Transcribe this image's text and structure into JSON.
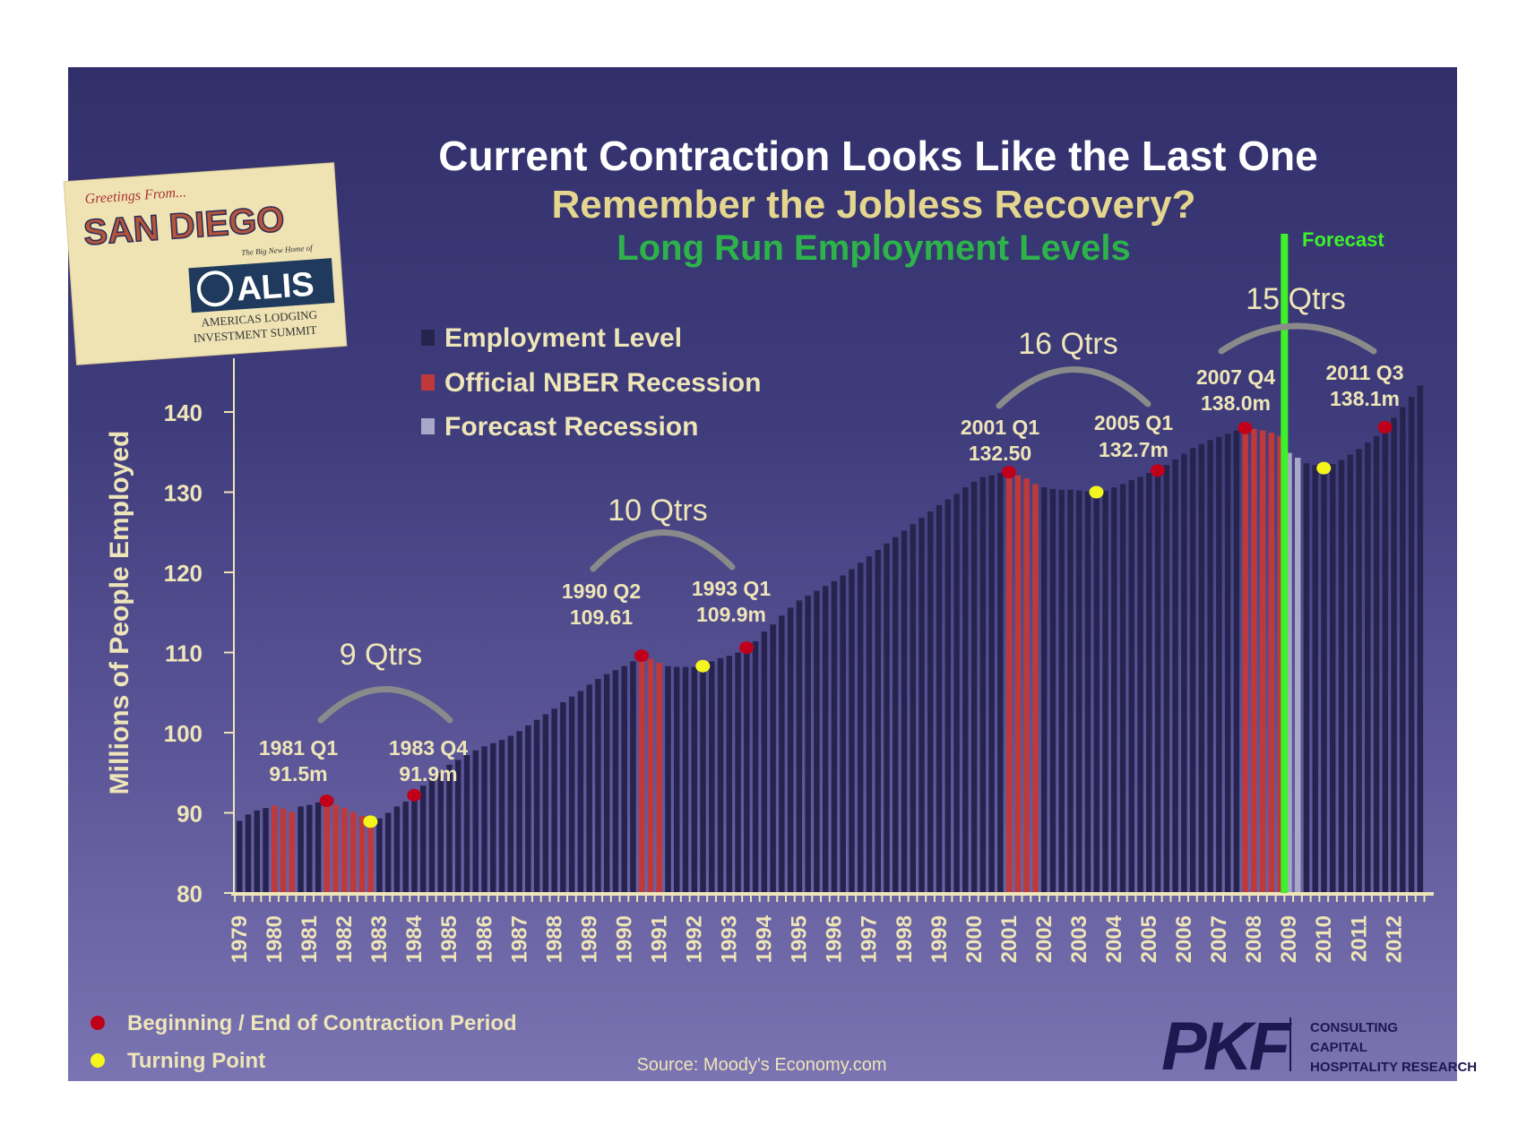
{
  "title": "Current Contraction Looks Like the Last One",
  "subtitle": "Remember the Jobless Recovery?",
  "subtitle2": "Long Run Employment Levels",
  "forecast_label": "Forecast",
  "colors": {
    "employment": "#26244f",
    "nber": "#c0393a",
    "forecast_recession": "#a9a8c8",
    "forecast_line": "#3df22a",
    "contraction_dot": "#c0001a",
    "turning_dot": "#f5f51e",
    "text": "#eee5b8",
    "title_green": "#2db34a",
    "title_gold": "#e4d68e"
  },
  "legend": {
    "items": [
      {
        "label": "Employment Level",
        "color": "#26244f"
      },
      {
        "label": "Official NBER Recession",
        "color": "#c0393a"
      },
      {
        "label": "Forecast Recession",
        "color": "#a9a8c8"
      }
    ]
  },
  "bottom_legend": {
    "contraction": "Beginning / End of Contraction Period",
    "turning": "Turning Point"
  },
  "source": "Source: Moody's Economy.com",
  "logo_postcard": {
    "greeting": "Greetings From...",
    "city": "SAN DIEGO",
    "tagline": "The Big New Home of",
    "brand": "ALIS",
    "line1": "AMERICAS LODGING",
    "line2": "INVESTMENT SUMMIT"
  },
  "logo_pkf": {
    "brand": "PKF",
    "lines": [
      "CONSULTING",
      "CAPITAL",
      "HOSPITALITY RESEARCH"
    ]
  },
  "chart_data": {
    "type": "bar",
    "ylabel": "Millions of People Employed",
    "xlabel": "",
    "ylim": [
      80,
      140
    ],
    "yticks": [
      80,
      90,
      100,
      110,
      120,
      130,
      140
    ],
    "x_start": "1979 Q1",
    "frequency": "quarterly",
    "year_labels": [
      "1979",
      "1980",
      "1981",
      "1982",
      "1983",
      "1984",
      "1985",
      "1986",
      "1987",
      "1988",
      "1989",
      "1990",
      "1991",
      "1992",
      "1993",
      "1994",
      "1995",
      "1996",
      "1997",
      "1998",
      "1999",
      "2000",
      "2001",
      "2002",
      "2003",
      "2004",
      "2005",
      "2006",
      "2007",
      "2008",
      "2009",
      "2010",
      "2011",
      "2012"
    ],
    "values": [
      89.0,
      89.8,
      90.3,
      90.6,
      90.9,
      90.5,
      90.1,
      90.8,
      91.0,
      91.3,
      91.5,
      91.0,
      90.6,
      90.1,
      89.6,
      88.9,
      89.3,
      90.0,
      90.8,
      91.4,
      92.2,
      93.4,
      94.4,
      95.0,
      96.0,
      96.6,
      97.2,
      97.8,
      98.3,
      98.7,
      99.1,
      99.6,
      100.2,
      100.9,
      101.6,
      102.3,
      103.0,
      103.8,
      104.5,
      105.2,
      106.0,
      106.7,
      107.3,
      107.8,
      108.3,
      108.9,
      109.6,
      109.2,
      108.7,
      108.3,
      108.2,
      108.2,
      108.2,
      108.3,
      108.9,
      109.3,
      109.6,
      110.0,
      110.6,
      111.4,
      112.6,
      113.5,
      114.6,
      115.6,
      116.5,
      117.1,
      117.7,
      118.3,
      118.9,
      119.6,
      120.4,
      121.2,
      122.0,
      122.8,
      123.6,
      124.4,
      125.2,
      126.0,
      126.8,
      127.6,
      128.4,
      129.1,
      129.8,
      130.6,
      131.3,
      131.9,
      132.1,
      132.4,
      132.5,
      132.1,
      131.7,
      131.0,
      130.6,
      130.4,
      130.3,
      130.3,
      130.2,
      130.1,
      130.0,
      130.2,
      130.6,
      131.0,
      131.5,
      131.9,
      132.4,
      132.7,
      133.4,
      134.1,
      134.8,
      135.5,
      136.0,
      136.5,
      136.9,
      137.3,
      137.7,
      138.0,
      137.9,
      137.7,
      137.4,
      137.0,
      134.9,
      134.3,
      133.6,
      133.4,
      133.0,
      133.5,
      134.0,
      134.7,
      135.4,
      136.2,
      137.0,
      138.1,
      139.3,
      140.6,
      141.9,
      143.3
    ],
    "nber_recessions": [
      [
        "1980 Q1",
        "1980 Q3"
      ],
      [
        "1981 Q3",
        "1982 Q4"
      ],
      [
        "1990 Q3",
        "1991 Q1"
      ],
      [
        "2001 Q1",
        "2001 Q4"
      ],
      [
        "2007 Q4",
        "2008 Q4"
      ]
    ],
    "forecast_recession": [
      [
        "2009 Q1",
        "2009 Q2"
      ]
    ],
    "forecast_start": "2009 Q1",
    "contraction_points": [
      "1981 Q3",
      "1984 Q1",
      "1990 Q3",
      "1993 Q3",
      "2001 Q1",
      "2005 Q2",
      "2007 Q4",
      "2011 Q4"
    ],
    "turning_points": [
      "1982 Q4",
      "1992 Q2",
      "2003 Q3",
      "2010 Q1"
    ],
    "annotations": [
      {
        "label": "9 Qtrs",
        "start_label": "1981 Q1",
        "start_value": "91.5m",
        "end_label": "1983 Q4",
        "end_value": "91.9m"
      },
      {
        "label": "10 Qtrs",
        "start_label": "1990 Q2",
        "start_value": "109.61",
        "end_label": "1993 Q1",
        "end_value": "109.9m"
      },
      {
        "label": "16 Qtrs",
        "start_label": "2001 Q1",
        "start_value": "132.50",
        "end_label": "2005 Q1",
        "end_value": "132.7m"
      },
      {
        "label": "15 Qtrs",
        "start_label": "2007 Q4",
        "start_value": "138.0m",
        "end_label": "2011 Q3",
        "end_value": "138.1m"
      }
    ]
  }
}
